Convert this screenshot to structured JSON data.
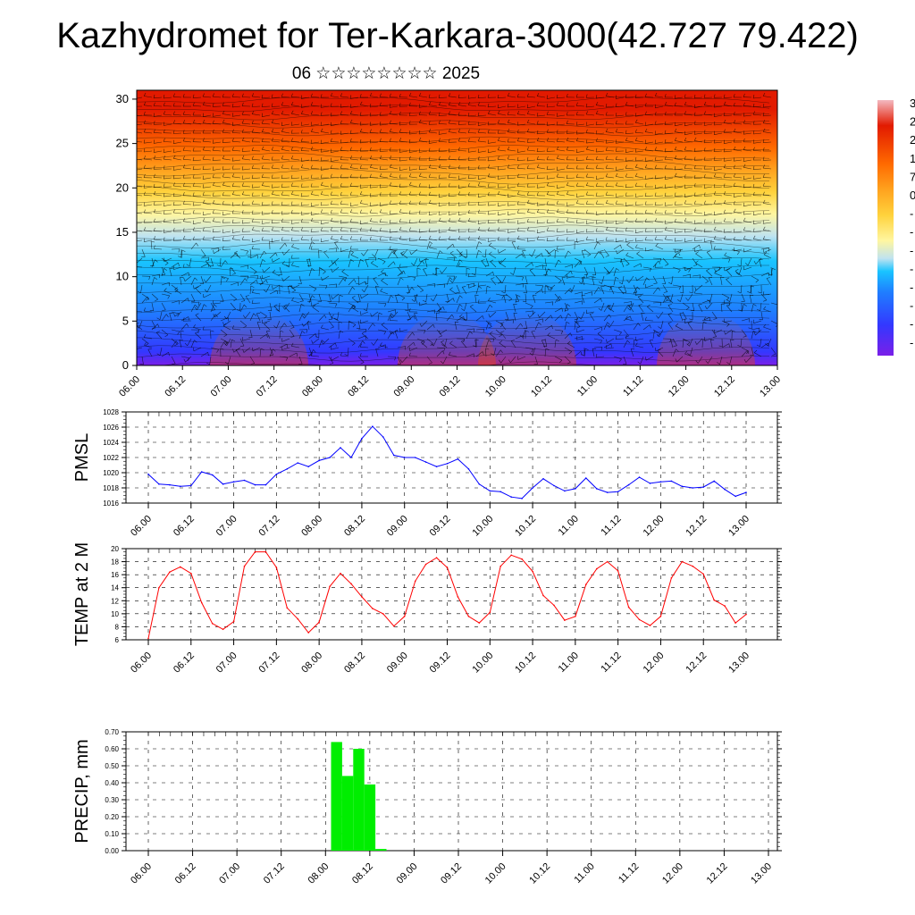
{
  "title": "Kazhydromet for Ter-Karkara-3000(42.727 79.422)",
  "subtitle": "06 ☆☆☆☆☆☆☆☆ 2025",
  "x_ticks": [
    "06.00",
    "06.12",
    "07.00",
    "07.12",
    "08.00",
    "08.12",
    "09.00",
    "09.12",
    "10.00",
    "10.12",
    "11.00",
    "11.12",
    "12.00",
    "12.12",
    "13.00"
  ],
  "chart_data": [
    {
      "type": "heatmap",
      "name": "",
      "y_ticks": [
        0,
        5,
        10,
        15,
        20,
        25,
        30
      ],
      "ylim": [
        0,
        31
      ],
      "colorbar_labels": [
        "3",
        "2",
        "2",
        "1",
        "7",
        "0",
        "-",
        "-",
        "-",
        "-",
        "-",
        "-",
        "-",
        "-"
      ],
      "colors": [
        "#7a1fe8",
        "#3338ff",
        "#1f7fff",
        "#19c4ff",
        "#bfe3f0",
        "#fff6a0",
        "#ffd23c",
        "#ffa21e",
        "#ff6a00",
        "#e21a00"
      ],
      "wind_barbs": true
    },
    {
      "type": "line",
      "ylabel": "PMSL",
      "ylim": [
        1016,
        1028
      ],
      "y_ticks": [
        1016,
        1018,
        1020,
        1022,
        1024,
        1026,
        1028
      ],
      "color": "#0000ff",
      "x": [
        0,
        3,
        6,
        9,
        12,
        15,
        18,
        21,
        24,
        27,
        30,
        33,
        36,
        39,
        42,
        45,
        48,
        51,
        54,
        57,
        60,
        63,
        66,
        69,
        72,
        75,
        78,
        81,
        84,
        87,
        90,
        93,
        96,
        99,
        102,
        105,
        108,
        111,
        114,
        117,
        120,
        123,
        126,
        129,
        132,
        135,
        138,
        141,
        144,
        147,
        150,
        153,
        156,
        159,
        162,
        165,
        168
      ],
      "values": [
        1019.8,
        1018.5,
        1018.4,
        1018.2,
        1018.3,
        1020.1,
        1019.7,
        1018.5,
        1018.8,
        1019.0,
        1018.4,
        1018.4,
        1019.8,
        1020.5,
        1021.3,
        1020.8,
        1021.6,
        1022.0,
        1023.3,
        1022.0,
        1024.5,
        1026.1,
        1024.7,
        1022.3,
        1022.0,
        1022.0,
        1021.4,
        1020.8,
        1021.2,
        1021.8,
        1020.5,
        1018.5,
        1017.6,
        1017.5,
        1016.8,
        1016.6,
        1018.0,
        1019.2,
        1018.3,
        1017.6,
        1017.9,
        1019.3,
        1017.9,
        1017.4,
        1017.5,
        1018.4,
        1019.4,
        1018.6,
        1018.8,
        1018.9,
        1018.2,
        1018.0,
        1018.1,
        1018.9,
        1017.8,
        1016.9,
        1017.4
      ]
    },
    {
      "type": "line",
      "ylabel": "TEMP at 2 M",
      "ylim": [
        6,
        20
      ],
      "y_ticks": [
        6,
        8,
        10,
        12,
        14,
        16,
        18,
        20
      ],
      "color": "#ff0000",
      "x": [
        0,
        3,
        6,
        9,
        12,
        15,
        18,
        21,
        24,
        27,
        30,
        33,
        36,
        39,
        42,
        45,
        48,
        51,
        54,
        57,
        60,
        63,
        66,
        69,
        72,
        75,
        78,
        81,
        84,
        87,
        90,
        93,
        96,
        99,
        102,
        105,
        108,
        111,
        114,
        117,
        120,
        123,
        126,
        129,
        132,
        135,
        138,
        141,
        144,
        147,
        150,
        153,
        156,
        159,
        162,
        165,
        168
      ],
      "values": [
        6.2,
        14.0,
        16.4,
        17.2,
        16.2,
        11.7,
        8.5,
        7.6,
        8.8,
        17.3,
        19.5,
        19.5,
        17.1,
        10.9,
        9.2,
        7.1,
        8.7,
        14.2,
        16.2,
        14.6,
        12.6,
        10.8,
        10.0,
        8.1,
        9.6,
        15.0,
        17.6,
        18.6,
        17.1,
        12.6,
        9.6,
        8.6,
        10.2,
        17.3,
        19.0,
        18.4,
        16.5,
        12.8,
        11.3,
        9.0,
        9.6,
        14.5,
        16.9,
        18.0,
        16.6,
        11.0,
        9.1,
        8.2,
        9.6,
        15.5,
        18.0,
        17.3,
        16.1,
        12.1,
        11.2,
        8.6,
        9.9
      ]
    },
    {
      "type": "bar",
      "ylabel": "PRECIP, mm",
      "ylim": [
        0,
        0.7
      ],
      "y_ticks": [
        "0.00",
        "0.10",
        "0.20",
        "0.30",
        "0.40",
        "0.50",
        "0.60",
        "0.70"
      ],
      "color": "#00ee00",
      "x": [
        51,
        54,
        57,
        60,
        63
      ],
      "values": [
        0.64,
        0.44,
        0.6,
        0.39,
        0.01
      ]
    }
  ]
}
